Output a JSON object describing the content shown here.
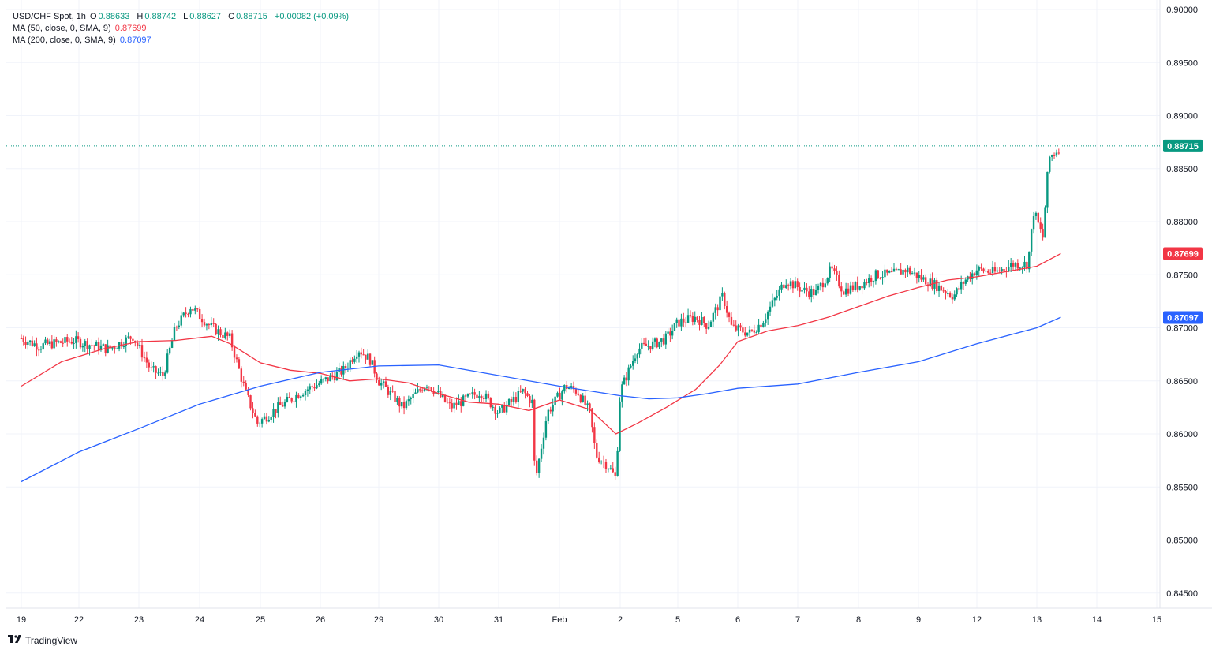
{
  "legend": {
    "symbol_line": "USD/CHF Spot, 1h",
    "o_label": "O",
    "o_value": "0.88633",
    "h_label": "H",
    "h_value": "0.88742",
    "l_label": "L",
    "l_value": "0.88627",
    "c_label": "C",
    "c_value": "0.88715",
    "change": "+0.00082 (+0.09%)",
    "ma50_label": "MA (50, close, 0, SMA, 9)",
    "ma50_value": "0.87699",
    "ma200_label": "MA (200, close, 0, SMA, 9)",
    "ma200_value": "0.87097"
  },
  "brand": {
    "logo_icon": "tradingview-logo-icon",
    "text": "TradingView"
  },
  "colors": {
    "up": "#089981",
    "down": "#f23645",
    "ma50": "#f23645",
    "ma200": "#2962ff",
    "grid": "#f0f3fa"
  },
  "chart_data": {
    "type": "candlestick",
    "instrument": "USD/CHF Spot",
    "interval": "1h",
    "ylim": [
      0.8435,
      0.9005
    ],
    "y_ticks": [
      "0.90000",
      "0.89500",
      "0.89000",
      "0.88500",
      "0.88000",
      "0.87500",
      "0.87000",
      "0.86500",
      "0.86000",
      "0.85500",
      "0.85000",
      "0.84500"
    ],
    "x_ticks": [
      "19",
      "22",
      "23",
      "24",
      "25",
      "26",
      "29",
      "30",
      "31",
      "Feb",
      "2",
      "5",
      "6",
      "7",
      "8",
      "9",
      "12",
      "13",
      "14",
      "15"
    ],
    "grid": true,
    "last_price": "0.88715",
    "series": [
      {
        "name": "MA (50, close, 0, SMA, 9)",
        "last": "0.87699",
        "points": [
          [
            0,
            0.8645
          ],
          [
            0.7,
            0.8668
          ],
          [
            1.4,
            0.868
          ],
          [
            2.0,
            0.8687
          ],
          [
            2.6,
            0.8688
          ],
          [
            3.2,
            0.8692
          ],
          [
            3.5,
            0.8685
          ],
          [
            4.0,
            0.8667
          ],
          [
            4.5,
            0.866
          ],
          [
            5.0,
            0.8657
          ],
          [
            5.5,
            0.865
          ],
          [
            6.0,
            0.8652
          ],
          [
            6.5,
            0.8648
          ],
          [
            7.0,
            0.8638
          ],
          [
            7.5,
            0.863
          ],
          [
            8.0,
            0.8628
          ],
          [
            8.5,
            0.8622
          ],
          [
            9.0,
            0.8632
          ],
          [
            9.5,
            0.8623
          ],
          [
            9.93,
            0.86
          ],
          [
            10.3,
            0.861
          ],
          [
            10.8,
            0.8625
          ],
          [
            11.3,
            0.8642
          ],
          [
            11.7,
            0.8665
          ],
          [
            12.0,
            0.8687
          ],
          [
            12.5,
            0.8697
          ],
          [
            13.0,
            0.8702
          ],
          [
            13.5,
            0.871
          ],
          [
            14.0,
            0.872
          ],
          [
            14.5,
            0.873
          ],
          [
            15.0,
            0.8738
          ],
          [
            15.5,
            0.8745
          ],
          [
            16.0,
            0.8748
          ],
          [
            16.5,
            0.8753
          ],
          [
            17.0,
            0.8758
          ],
          [
            17.2,
            0.8764
          ],
          [
            17.4,
            0.877
          ]
        ]
      },
      {
        "name": "MA (200, close, 0, SMA, 9)",
        "last": "0.87097",
        "points": [
          [
            0,
            0.8555
          ],
          [
            1,
            0.8583
          ],
          [
            2,
            0.8605
          ],
          [
            3,
            0.8628
          ],
          [
            4,
            0.8645
          ],
          [
            5,
            0.8658
          ],
          [
            6,
            0.8664
          ],
          [
            7,
            0.8665
          ],
          [
            8,
            0.8655
          ],
          [
            9,
            0.8645
          ],
          [
            10,
            0.8636
          ],
          [
            10.5,
            0.8633
          ],
          [
            11,
            0.8634
          ],
          [
            11.5,
            0.8638
          ],
          [
            12,
            0.8643
          ],
          [
            13,
            0.8647
          ],
          [
            14,
            0.8658
          ],
          [
            15,
            0.8668
          ],
          [
            16,
            0.8685
          ],
          [
            17,
            0.87
          ],
          [
            17.4,
            0.871
          ]
        ]
      }
    ],
    "candles_note_hidden": "",
    "candle_path": [
      [
        0,
        0.869
      ],
      [
        0.3,
        0.8683
      ],
      [
        0.9,
        0.8688
      ],
      [
        1.5,
        0.868
      ],
      [
        1.9,
        0.8692
      ],
      [
        2.2,
        0.866
      ],
      [
        2.4,
        0.8655
      ],
      [
        2.6,
        0.87
      ],
      [
        2.85,
        0.872
      ],
      [
        3.2,
        0.87
      ],
      [
        3.5,
        0.869
      ],
      [
        3.75,
        0.864
      ],
      [
        3.95,
        0.861
      ],
      [
        4.3,
        0.8625
      ],
      [
        4.7,
        0.864
      ],
      [
        5.0,
        0.8648
      ],
      [
        5.4,
        0.866
      ],
      [
        5.65,
        0.868
      ],
      [
        5.85,
        0.867
      ],
      [
        6.0,
        0.865
      ],
      [
        6.4,
        0.8625
      ],
      [
        6.8,
        0.8648
      ],
      [
        7.2,
        0.8625
      ],
      [
        7.7,
        0.864
      ],
      [
        8.0,
        0.862
      ],
      [
        8.4,
        0.864
      ],
      [
        8.55,
        0.863
      ],
      [
        8.6,
        0.8555
      ],
      [
        8.8,
        0.862
      ],
      [
        9.1,
        0.8645
      ],
      [
        9.3,
        0.864
      ],
      [
        9.5,
        0.862
      ],
      [
        9.6,
        0.858
      ],
      [
        9.8,
        0.857
      ],
      [
        9.93,
        0.8558
      ],
      [
        10.0,
        0.864
      ],
      [
        10.3,
        0.868
      ],
      [
        10.6,
        0.8685
      ],
      [
        10.8,
        0.869
      ],
      [
        11.0,
        0.8705
      ],
      [
        11.3,
        0.871
      ],
      [
        11.5,
        0.8702
      ],
      [
        11.75,
        0.873
      ],
      [
        11.9,
        0.87
      ],
      [
        12.2,
        0.8695
      ],
      [
        12.4,
        0.8705
      ],
      [
        12.6,
        0.8725
      ],
      [
        12.8,
        0.8745
      ],
      [
        13.1,
        0.8735
      ],
      [
        13.3,
        0.8733
      ],
      [
        13.55,
        0.8755
      ],
      [
        13.75,
        0.8735
      ],
      [
        14.0,
        0.874
      ],
      [
        14.3,
        0.875
      ],
      [
        14.55,
        0.875
      ],
      [
        14.8,
        0.8755
      ],
      [
        15.0,
        0.8748
      ],
      [
        15.3,
        0.874
      ],
      [
        15.6,
        0.873
      ],
      [
        15.8,
        0.8745
      ],
      [
        16.0,
        0.8755
      ],
      [
        16.3,
        0.8752
      ],
      [
        16.6,
        0.876
      ],
      [
        16.85,
        0.876
      ],
      [
        16.95,
        0.881
      ],
      [
        17.1,
        0.8785
      ],
      [
        17.2,
        0.886
      ],
      [
        17.3,
        0.8865
      ],
      [
        17.4,
        0.8872
      ]
    ]
  }
}
